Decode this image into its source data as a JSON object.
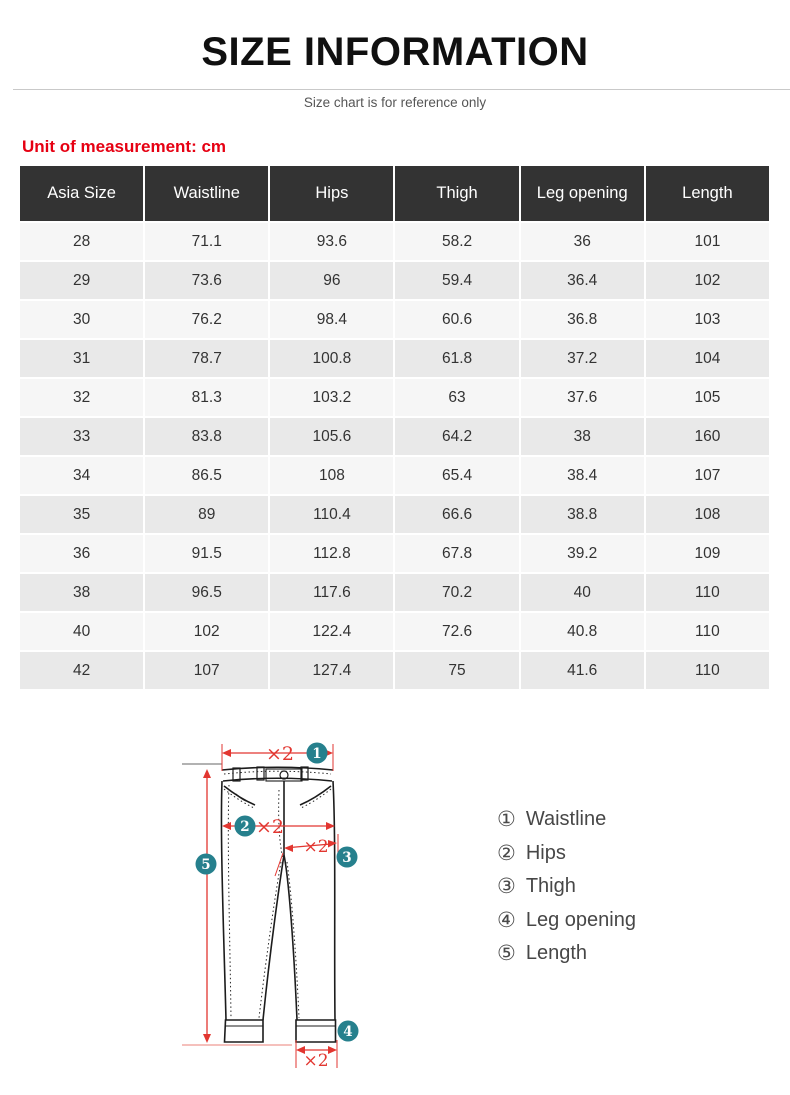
{
  "page": {
    "title": "SIZE INFORMATION",
    "subtitle": "Size chart is for reference only",
    "unit_note": "Unit of measurement: cm"
  },
  "colors": {
    "accent_red": "#e60012",
    "diagram_red": "#e23630",
    "badge_teal": "#26808d",
    "header_bg": "#333333",
    "header_text": "#ffffff",
    "row_light": "#f6f6f6",
    "row_dark": "#e9e9e9",
    "body_text": "#333333"
  },
  "table": {
    "headers": [
      "Asia Size",
      "Waistline",
      "Hips",
      "Thigh",
      "Leg opening",
      "Length"
    ],
    "rows": [
      [
        "28",
        "71.1",
        "93.6",
        "58.2",
        "36",
        "101"
      ],
      [
        "29",
        "73.6",
        "96",
        "59.4",
        "36.4",
        "102"
      ],
      [
        "30",
        "76.2",
        "98.4",
        "60.6",
        "36.8",
        "103"
      ],
      [
        "31",
        "78.7",
        "100.8",
        "61.8",
        "37.2",
        "104"
      ],
      [
        "32",
        "81.3",
        "103.2",
        "63",
        "37.6",
        "105"
      ],
      [
        "33",
        "83.8",
        "105.6",
        "64.2",
        "38",
        "160"
      ],
      [
        "34",
        "86.5",
        "108",
        "65.4",
        "38.4",
        "107"
      ],
      [
        "35",
        "89",
        "110.4",
        "66.6",
        "38.8",
        "108"
      ],
      [
        "36",
        "91.5",
        "112.8",
        "67.8",
        "39.2",
        "109"
      ],
      [
        "38",
        "96.5",
        "117.6",
        "70.2",
        "40",
        "110"
      ],
      [
        "40",
        "102",
        "122.4",
        "72.6",
        "40.8",
        "110"
      ],
      [
        "42",
        "107",
        "127.4",
        "75",
        "41.6",
        "110"
      ]
    ]
  },
  "diagram": {
    "multiplier_label": "×2",
    "badges": [
      "1",
      "2",
      "3",
      "4",
      "5"
    ],
    "legend": [
      {
        "num": "①",
        "label": "Waistline"
      },
      {
        "num": "②",
        "label": "Hips"
      },
      {
        "num": "③",
        "label": "Thigh"
      },
      {
        "num": "④",
        "label": "Leg opening"
      },
      {
        "num": "⑤",
        "label": "Length"
      }
    ]
  }
}
